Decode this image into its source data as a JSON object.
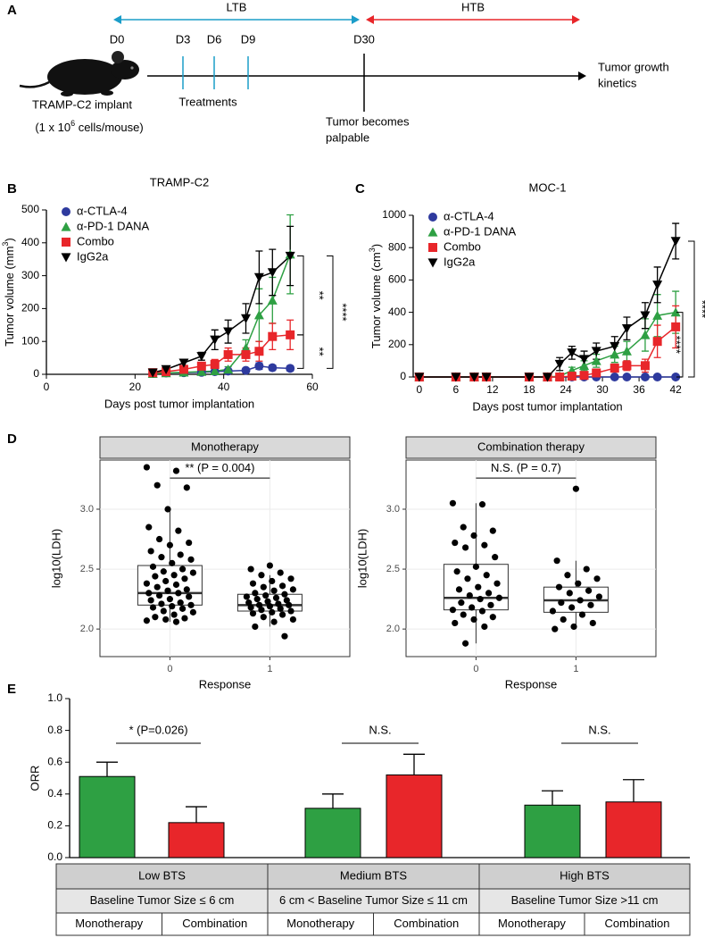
{
  "panel_labels": [
    "A",
    "B",
    "C",
    "D",
    "E"
  ],
  "timeline": {
    "phases": [
      {
        "label": "LTB",
        "color": "#1b9dc9"
      },
      {
        "label": "HTB",
        "color": "#e8262a"
      }
    ],
    "days": [
      {
        "label": "D0",
        "color": "#000000"
      },
      {
        "label": "D3",
        "color": "#1b9dc9"
      },
      {
        "label": "D6",
        "color": "#1b9dc9"
      },
      {
        "label": "D9",
        "color": "#1b9dc9"
      },
      {
        "label": "D30",
        "color": "#000000"
      }
    ],
    "treatments": "Treatments",
    "implant": "TRAMP-C2 implant",
    "cells": [
      "(1 x 10",
      "6",
      " cells/mouse)"
    ],
    "palpable": [
      "Tumor becomes",
      "palpable"
    ],
    "endpoint": [
      "Tumor growth",
      "kinetics"
    ]
  },
  "chart_data": [
    {
      "type": "line",
      "title": "TRAMP-C2",
      "x_label": "Days post tumor implantation",
      "y_label": [
        "Tumor volume (mm",
        "3",
        ")"
      ],
      "x": [
        24,
        27,
        31,
        35,
        38,
        41,
        45,
        48,
        51,
        55
      ],
      "xlim": [
        0,
        60
      ],
      "xticks": [
        0,
        20,
        40,
        60
      ],
      "ylim": [
        0,
        500
      ],
      "yticks": [
        0,
        100,
        200,
        300,
        400,
        500
      ],
      "legend": "upper left",
      "series": [
        {
          "name": "α-CTLA-4",
          "color": "#2e3a9e",
          "marker": "circle",
          "values": [
            3,
            4,
            5,
            6,
            8,
            10,
            12,
            25,
            20,
            18
          ],
          "errors": [
            2,
            2,
            2,
            3,
            3,
            4,
            5,
            10,
            8,
            8
          ]
        },
        {
          "name": "α-PD-1 DANA",
          "color": "#2ea043",
          "marker": "triangle",
          "values": [
            2,
            4,
            6,
            8,
            10,
            15,
            80,
            180,
            225,
            365
          ],
          "errors": [
            2,
            3,
            4,
            5,
            6,
            8,
            25,
            80,
            70,
            120
          ]
        },
        {
          "name": "Combo",
          "color": "#e8262a",
          "marker": "square",
          "values": [
            5,
            8,
            15,
            25,
            30,
            60,
            60,
            70,
            115,
            120
          ],
          "errors": [
            3,
            5,
            6,
            8,
            15,
            20,
            20,
            30,
            40,
            45
          ]
        },
        {
          "name": "IgG2a",
          "color": "#000000",
          "marker": "triangle-down",
          "values": [
            5,
            15,
            35,
            55,
            105,
            130,
            170,
            295,
            310,
            360
          ],
          "errors": [
            3,
            5,
            8,
            12,
            30,
            35,
            45,
            80,
            70,
            90
          ]
        }
      ],
      "annotations": [
        "**",
        "**",
        "****"
      ]
    },
    {
      "type": "line",
      "title": "MOC-1",
      "x_label": "Days post tumor implantation",
      "y_label": [
        "Tumor volume (cm",
        "3",
        ")"
      ],
      "x": [
        0,
        6,
        9,
        11,
        18,
        21,
        23,
        25,
        27,
        29,
        32,
        34,
        37,
        39,
        42
      ],
      "xlim": [
        -1,
        43
      ],
      "xticks": [
        0,
        6,
        12,
        18,
        24,
        30,
        36,
        42
      ],
      "ylim": [
        0,
        1000
      ],
      "yticks": [
        0,
        200,
        400,
        600,
        800,
        1000
      ],
      "legend": "upper left",
      "series": [
        {
          "name": "α-CTLA-4",
          "color": "#2e3a9e",
          "marker": "circle",
          "values": [
            0,
            0,
            0,
            0,
            0,
            0,
            0,
            0,
            0,
            0,
            0,
            0,
            0,
            0,
            0
          ],
          "errors": [
            0,
            0,
            0,
            0,
            0,
            0,
            0,
            0,
            0,
            0,
            0,
            0,
            0,
            0,
            0
          ]
        },
        {
          "name": "α-PD-1 DANA",
          "color": "#2ea043",
          "marker": "triangle",
          "values": [
            0,
            0,
            0,
            0,
            0,
            0,
            5,
            40,
            70,
            100,
            140,
            160,
            260,
            380,
            400
          ],
          "errors": [
            0,
            0,
            0,
            0,
            0,
            0,
            5,
            20,
            30,
            40,
            50,
            60,
            100,
            130,
            130
          ]
        },
        {
          "name": "Combo",
          "color": "#e8262a",
          "marker": "square",
          "values": [
            0,
            0,
            0,
            0,
            0,
            0,
            0,
            5,
            10,
            25,
            55,
            70,
            70,
            220,
            310
          ],
          "errors": [
            0,
            0,
            0,
            0,
            0,
            0,
            0,
            5,
            8,
            15,
            25,
            30,
            40,
            100,
            130
          ]
        },
        {
          "name": "IgG2a",
          "color": "#000000",
          "marker": "triangle-down",
          "values": [
            0,
            0,
            0,
            0,
            0,
            0,
            80,
            150,
            110,
            160,
            190,
            300,
            380,
            570,
            840
          ],
          "errors": [
            0,
            0,
            0,
            0,
            0,
            0,
            40,
            40,
            50,
            50,
            60,
            70,
            80,
            110,
            110
          ]
        }
      ],
      "annotations": [
        "****",
        "****"
      ]
    },
    {
      "type": "box",
      "title": "Monotherapy",
      "x_label": "Response",
      "y_label": "log10(LDH)",
      "categories": [
        "0",
        "1"
      ],
      "ylim": [
        1.77,
        3.41
      ],
      "yticks": [
        {
          "value": 2,
          "label": "2.0"
        },
        2.5,
        {
          "value": 3,
          "label": "3.0"
        }
      ],
      "grid": true,
      "boxes": [
        {
          "whisker_low": 2.06,
          "q1": 2.2,
          "median": 2.3,
          "q3": 2.53,
          "whisker_high": 3.0
        },
        {
          "whisker_low": 2.02,
          "q1": 2.15,
          "median": 2.2,
          "q3": 2.29,
          "whisker_high": 2.45
        }
      ],
      "points": [
        [
          3.35,
          3.32,
          3.2,
          3.18,
          3.0,
          2.85,
          2.82,
          2.75,
          2.72,
          2.7,
          2.65,
          2.62,
          2.6,
          2.58,
          2.55,
          2.52,
          2.5,
          2.48,
          2.47,
          2.45,
          2.44,
          2.42,
          2.4,
          2.38,
          2.37,
          2.35,
          2.33,
          2.32,
          2.3,
          2.3,
          2.28,
          2.27,
          2.25,
          2.24,
          2.22,
          2.21,
          2.2,
          2.19,
          2.18,
          2.17,
          2.15,
          2.14,
          2.12,
          2.1,
          2.09,
          2.08,
          2.07,
          2.06
        ],
        [
          2.53,
          2.5,
          2.47,
          2.45,
          2.42,
          2.4,
          2.38,
          2.36,
          2.35,
          2.33,
          2.32,
          2.3,
          2.29,
          2.28,
          2.27,
          2.26,
          2.25,
          2.24,
          2.23,
          2.22,
          2.21,
          2.2,
          2.2,
          2.19,
          2.18,
          2.17,
          2.16,
          2.15,
          2.14,
          2.13,
          2.12,
          2.1,
          2.08,
          2.06,
          2.02,
          1.94
        ]
      ],
      "annotation": "** (P = 0.004)"
    },
    {
      "type": "box",
      "title": "Combination therapy",
      "x_label": "Response",
      "y_label": "log10(LDH)",
      "categories": [
        "0",
        "1"
      ],
      "ylim": [
        1.77,
        3.41
      ],
      "yticks": [
        {
          "value": 2,
          "label": "2.0"
        },
        2.5,
        {
          "value": 3,
          "label": "3.0"
        }
      ],
      "grid": true,
      "boxes": [
        {
          "whisker_low": 1.88,
          "q1": 2.16,
          "median": 2.26,
          "q3": 2.54,
          "whisker_high": 3.05
        },
        {
          "whisker_low": 2.0,
          "q1": 2.14,
          "median": 2.24,
          "q3": 2.35,
          "whisker_high": 2.57
        }
      ],
      "points": [
        [
          3.05,
          3.04,
          2.85,
          2.82,
          2.78,
          2.72,
          2.7,
          2.68,
          2.6,
          2.52,
          2.48,
          2.45,
          2.42,
          2.38,
          2.35,
          2.33,
          2.3,
          2.28,
          2.26,
          2.25,
          2.22,
          2.2,
          2.18,
          2.16,
          2.15,
          2.12,
          2.1,
          2.08,
          2.05,
          2.02,
          1.88
        ],
        [
          3.17,
          2.57,
          2.5,
          2.45,
          2.42,
          2.38,
          2.35,
          2.32,
          2.3,
          2.27,
          2.24,
          2.22,
          2.2,
          2.18,
          2.15,
          2.12,
          2.08,
          2.05,
          2.02,
          2.0
        ]
      ],
      "annotation": "N.S. (P = 0.7)"
    },
    {
      "type": "bar",
      "y_label": "ORR",
      "ylim": [
        0,
        1
      ],
      "yticks": [
        {
          "value": 0,
          "label": "0.0"
        },
        0.2,
        0.4,
        0.6,
        0.8,
        {
          "value": 1,
          "label": "1.0"
        }
      ],
      "categories": [
        "Monotherapy",
        "Combination",
        "Monotherapy",
        "Combination",
        "Monotherapy",
        "Combination"
      ],
      "values": [
        0.51,
        0.22,
        0.31,
        0.52,
        0.33,
        0.35
      ],
      "errors": [
        0.09,
        0.1,
        0.09,
        0.13,
        0.09,
        0.14
      ],
      "colors": [
        "#2ea043",
        "#e8262a",
        "#2ea043",
        "#e8262a",
        "#2ea043",
        "#e8262a"
      ],
      "annotations": [
        "* (P=0.026)",
        "N.S.",
        "N.S."
      ],
      "groups": [
        "Low BTS",
        "Medium BTS",
        "High BTS"
      ],
      "group_descriptions": [
        "Baseline Tumor Size ≤ 6 cm",
        "6 cm < Baseline Tumor Size ≤ 11 cm",
        "Baseline Tumor Size >11 cm"
      ]
    }
  ]
}
